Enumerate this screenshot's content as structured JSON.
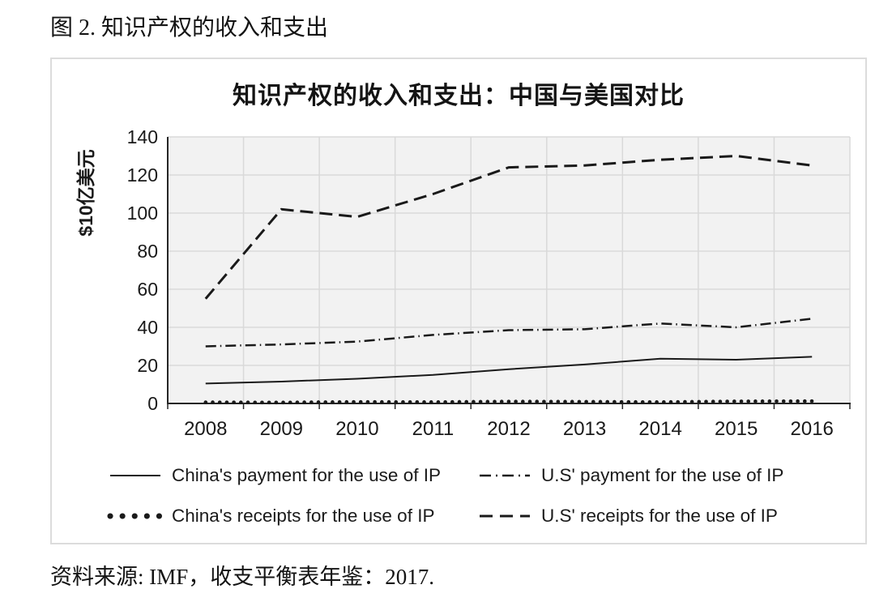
{
  "figure": {
    "title": "图 2. 知识产权的收入和支出",
    "source": "资料来源: IMF，收支平衡表年鉴：2017."
  },
  "chart_data": {
    "type": "line",
    "title": "知识产权的收入和支出：中国与美国对比",
    "xlabel": "",
    "ylabel": "$10亿美元",
    "ylim": [
      0,
      140
    ],
    "yticks": [
      0,
      20,
      40,
      60,
      80,
      100,
      120,
      140
    ],
    "categories": [
      "2008",
      "2009",
      "2010",
      "2011",
      "2012",
      "2013",
      "2014",
      "2015",
      "2016"
    ],
    "grid": true,
    "legend_position": "bottom",
    "plot_bg": "#f2f2f2",
    "grid_color": "#d9d9d9",
    "axis_color": "#262626",
    "line_color": "#1a1a1a",
    "series": [
      {
        "id": "china-payment",
        "name": "China's payment for the use of IP",
        "style": "solid",
        "legend_row": 1,
        "values": [
          10.5,
          11.5,
          13,
          15,
          18,
          20.5,
          23.5,
          23,
          24.5
        ]
      },
      {
        "id": "us-payment",
        "name": "U.S' payment for the use of IP",
        "style": "dash-dot",
        "legend_row": 1,
        "values": [
          30,
          31,
          32.5,
          36,
          38.5,
          39,
          42,
          40,
          44.5
        ]
      },
      {
        "id": "china-receipts",
        "name": "China's receipts for the use of IP",
        "style": "dotted",
        "legend_row": 2,
        "values": [
          0.6,
          0.5,
          0.8,
          0.7,
          1,
          0.9,
          0.7,
          1.1,
          1.2
        ]
      },
      {
        "id": "us-receipts",
        "name": "U.S' receipts for the use of IP",
        "style": "dashed",
        "legend_row": 2,
        "values": [
          55,
          102,
          98,
          110,
          124,
          125,
          128,
          130,
          125
        ]
      }
    ]
  }
}
